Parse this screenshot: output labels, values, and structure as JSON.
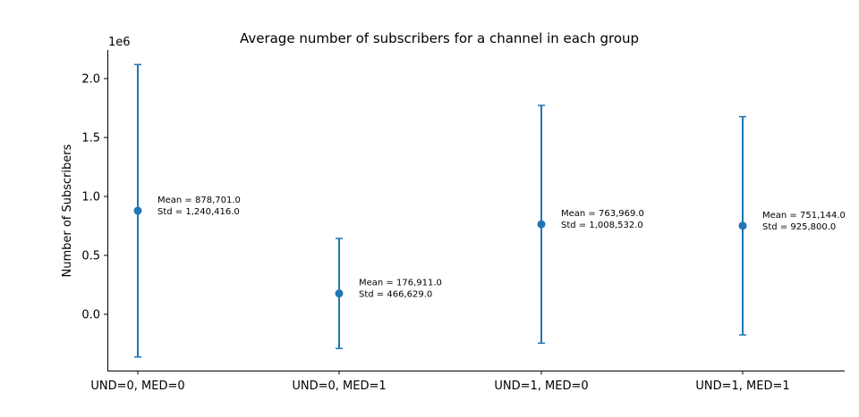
{
  "chart_data": {
    "type": "scatter",
    "title": "Average number of subscribers for a channel in each group",
    "xlabel": "",
    "ylabel": "Number of Subscribers",
    "y_offset_label": "1e6",
    "categories": [
      "UND=0, MED=0",
      "UND=0, MED=1",
      "UND=1, MED=0",
      "UND=1, MED=1"
    ],
    "means": [
      878701.0,
      176911.0,
      763969.0,
      751144.0
    ],
    "stds": [
      1240416.0,
      466629.0,
      1008532.0,
      925800.0
    ],
    "annotations": [
      [
        "Mean = 878,701.0",
        "Std = 1,240,416.0"
      ],
      [
        "Mean = 176,911.0",
        "Std = 466,629.0"
      ],
      [
        "Mean = 763,969.0",
        "Std = 1,008,532.0"
      ],
      [
        "Mean = 751,144.0",
        "Std = 925,800.0"
      ]
    ],
    "ylim": [
      -480000,
      2240000
    ],
    "yticks": [
      0.0,
      0.5,
      1.0,
      1.5,
      2.0
    ],
    "ytick_labels": [
      "0.0",
      "0.5",
      "1.0",
      "1.5",
      "2.0"
    ],
    "ytick_scale": 1000000,
    "color": "#1f77b4",
    "grid": false,
    "error_bars": true
  }
}
